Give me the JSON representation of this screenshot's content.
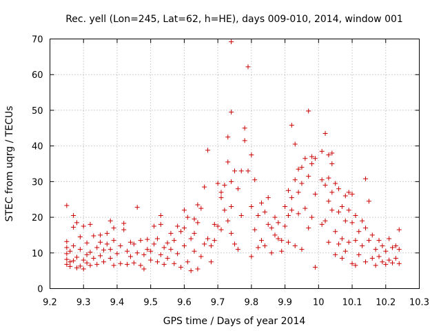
{
  "chart_data": {
    "type": "scatter",
    "title": "Rec. yell (Lon=245, Lat=62, h=HE), days 009-010, 2014, window 001",
    "xlabel": "GPS time / Days of year 2014",
    "ylabel": "STEC from uqrg / TECUs",
    "xlim": [
      9.2,
      10.3
    ],
    "ylim": [
      0,
      70
    ],
    "x_ticks": [
      "9.2",
      "9.3",
      "9.4",
      "9.5",
      "9.6",
      "9.7",
      "9.8",
      "9.9",
      "10",
      "10.1",
      "10.2",
      "10.3"
    ],
    "y_ticks": [
      "0",
      "10",
      "20",
      "30",
      "40",
      "50",
      "60",
      "70"
    ],
    "grid": true,
    "marker": "+",
    "color": "#cc0000",
    "series": [
      {
        "name": "STEC",
        "points": [
          [
            9.25,
            23.3
          ],
          [
            9.25,
            13.2
          ],
          [
            9.25,
            11.5
          ],
          [
            9.25,
            9.8
          ],
          [
            9.25,
            8.2
          ],
          [
            9.25,
            6.8
          ],
          [
            9.26,
            6.2
          ],
          [
            9.26,
            7.5
          ],
          [
            9.26,
            10.5
          ],
          [
            9.27,
            20.5
          ],
          [
            9.27,
            17.2
          ],
          [
            9.27,
            12.0
          ],
          [
            9.27,
            7.8
          ],
          [
            9.28,
            5.8
          ],
          [
            9.28,
            8.8
          ],
          [
            9.28,
            18.5
          ],
          [
            9.29,
            11.0
          ],
          [
            9.29,
            6.3
          ],
          [
            9.29,
            14.5
          ],
          [
            9.3,
            17.5
          ],
          [
            9.3,
            8.0
          ],
          [
            9.3,
            5.5
          ],
          [
            9.31,
            7.2
          ],
          [
            9.31,
            9.5
          ],
          [
            9.31,
            12.8
          ],
          [
            9.32,
            18.0
          ],
          [
            9.32,
            10.2
          ],
          [
            9.32,
            6.5
          ],
          [
            9.33,
            14.8
          ],
          [
            9.33,
            8.5
          ],
          [
            9.34,
            11.5
          ],
          [
            9.34,
            6.8
          ],
          [
            9.35,
            13.0
          ],
          [
            9.35,
            9.2
          ],
          [
            9.35,
            15.0
          ],
          [
            9.36,
            7.5
          ],
          [
            9.36,
            10.8
          ],
          [
            9.37,
            15.5
          ],
          [
            9.37,
            12.5
          ],
          [
            9.38,
            8.5
          ],
          [
            9.38,
            11.0
          ],
          [
            9.38,
            19.0
          ],
          [
            9.39,
            17.0
          ],
          [
            9.39,
            13.5
          ],
          [
            9.39,
            6.5
          ],
          [
            9.4,
            9.8
          ],
          [
            9.41,
            12.0
          ],
          [
            9.41,
            7.0
          ],
          [
            9.42,
            18.3
          ],
          [
            9.42,
            16.5
          ],
          [
            9.43,
            10.5
          ],
          [
            9.43,
            6.8
          ],
          [
            9.44,
            13.0
          ],
          [
            9.44,
            9.0
          ],
          [
            9.45,
            12.5
          ],
          [
            9.45,
            7.2
          ],
          [
            9.46,
            22.8
          ],
          [
            9.46,
            10.0
          ],
          [
            9.47,
            13.5
          ],
          [
            9.47,
            6.5
          ],
          [
            9.48,
            9.5
          ],
          [
            9.48,
            5.5
          ],
          [
            9.49,
            13.8
          ],
          [
            9.49,
            11.0
          ],
          [
            9.5,
            8.0
          ],
          [
            9.5,
            10.5
          ],
          [
            9.51,
            17.5
          ],
          [
            9.51,
            12.5
          ],
          [
            9.52,
            14.0
          ],
          [
            9.52,
            7.5
          ],
          [
            9.53,
            20.5
          ],
          [
            9.53,
            18.0
          ],
          [
            9.53,
            9.5
          ],
          [
            9.54,
            11.5
          ],
          [
            9.54,
            6.8
          ],
          [
            9.55,
            12.8
          ],
          [
            9.55,
            8.5
          ],
          [
            9.56,
            15.5
          ],
          [
            9.56,
            11.0
          ],
          [
            9.57,
            13.5
          ],
          [
            9.57,
            7.0
          ],
          [
            9.58,
            17.5
          ],
          [
            9.58,
            9.8
          ],
          [
            9.59,
            16.0
          ],
          [
            9.59,
            6.0
          ],
          [
            9.6,
            22.0
          ],
          [
            9.6,
            17.0
          ],
          [
            9.6,
            12.0
          ],
          [
            9.61,
            20.0
          ],
          [
            9.61,
            7.5
          ],
          [
            9.62,
            14.0
          ],
          [
            9.62,
            5.0
          ],
          [
            9.63,
            19.5
          ],
          [
            9.63,
            15.5
          ],
          [
            9.63,
            10.5
          ],
          [
            9.64,
            23.5
          ],
          [
            9.64,
            18.5
          ],
          [
            9.64,
            5.5
          ],
          [
            9.65,
            22.5
          ],
          [
            9.65,
            9.0
          ],
          [
            9.66,
            28.5
          ],
          [
            9.66,
            12.5
          ],
          [
            9.67,
            38.8
          ],
          [
            9.67,
            14.0
          ],
          [
            9.68,
            12.0
          ],
          [
            9.68,
            7.5
          ],
          [
            9.69,
            18.0
          ],
          [
            9.69,
            13.5
          ],
          [
            9.7,
            29.5
          ],
          [
            9.7,
            17.5
          ],
          [
            9.71,
            27.0
          ],
          [
            9.71,
            25.5
          ],
          [
            9.71,
            16.5
          ],
          [
            9.72,
            29.0
          ],
          [
            9.72,
            22.0
          ],
          [
            9.73,
            42.5
          ],
          [
            9.73,
            35.5
          ],
          [
            9.73,
            19.0
          ],
          [
            9.74,
            69.2
          ],
          [
            9.74,
            49.5
          ],
          [
            9.74,
            30.0
          ],
          [
            9.74,
            23.0
          ],
          [
            9.74,
            15.5
          ],
          [
            9.75,
            33.0
          ],
          [
            9.75,
            12.5
          ],
          [
            9.76,
            28.0
          ],
          [
            9.76,
            11.0
          ],
          [
            9.77,
            33.0
          ],
          [
            9.77,
            20.5
          ],
          [
            9.78,
            45.0
          ],
          [
            9.78,
            41.5
          ],
          [
            9.79,
            62.2
          ],
          [
            9.79,
            33.0
          ],
          [
            9.8,
            37.5
          ],
          [
            9.8,
            23.0
          ],
          [
            9.8,
            9.0
          ],
          [
            9.81,
            30.5
          ],
          [
            9.81,
            16.5
          ],
          [
            9.82,
            20.5
          ],
          [
            9.82,
            11.5
          ],
          [
            9.83,
            24.0
          ],
          [
            9.83,
            13.5
          ],
          [
            9.84,
            21.5
          ],
          [
            9.84,
            12.0
          ],
          [
            9.85,
            25.5
          ],
          [
            9.85,
            18.0
          ],
          [
            9.86,
            17.0
          ],
          [
            9.86,
            10.0
          ],
          [
            9.87,
            20.0
          ],
          [
            9.87,
            15.0
          ],
          [
            9.88,
            18.5
          ],
          [
            9.88,
            14.0
          ],
          [
            9.89,
            13.5
          ],
          [
            9.89,
            10.5
          ],
          [
            9.9,
            23.0
          ],
          [
            9.9,
            17.5
          ],
          [
            9.91,
            27.5
          ],
          [
            9.91,
            20.5
          ],
          [
            9.91,
            13.0
          ],
          [
            9.92,
            45.8
          ],
          [
            9.92,
            25.5
          ],
          [
            9.92,
            22.0
          ],
          [
            9.93,
            40.5
          ],
          [
            9.93,
            30.5
          ],
          [
            9.93,
            12.0
          ],
          [
            9.94,
            33.5
          ],
          [
            9.94,
            27.0
          ],
          [
            9.94,
            21.0
          ],
          [
            9.95,
            34.0
          ],
          [
            9.95,
            29.5
          ],
          [
            9.95,
            11.0
          ],
          [
            9.96,
            36.5
          ],
          [
            9.96,
            22.5
          ],
          [
            9.97,
            49.8
          ],
          [
            9.97,
            31.5
          ],
          [
            9.97,
            17.0
          ],
          [
            9.98,
            37.0
          ],
          [
            9.98,
            35.0
          ],
          [
            9.98,
            20.0
          ],
          [
            9.99,
            36.5
          ],
          [
            9.99,
            26.5
          ],
          [
            9.99,
            6.0
          ],
          [
            10.01,
            38.5
          ],
          [
            10.01,
            30.5
          ],
          [
            10.01,
            18.0
          ],
          [
            10.02,
            43.5
          ],
          [
            10.02,
            29.0
          ],
          [
            10.02,
            19.0
          ],
          [
            10.03,
            37.5
          ],
          [
            10.03,
            31.0
          ],
          [
            10.03,
            24.5
          ],
          [
            10.03,
            13.0
          ],
          [
            10.04,
            38.0
          ],
          [
            10.04,
            35.0
          ],
          [
            10.04,
            27.0
          ],
          [
            10.04,
            22.0
          ],
          [
            10.05,
            29.5
          ],
          [
            10.05,
            16.0
          ],
          [
            10.05,
            9.5
          ],
          [
            10.06,
            28.0
          ],
          [
            10.06,
            21.5
          ],
          [
            10.06,
            12.5
          ],
          [
            10.07,
            23.0
          ],
          [
            10.07,
            14.0
          ],
          [
            10.07,
            8.5
          ],
          [
            10.08,
            26.0
          ],
          [
            10.08,
            19.0
          ],
          [
            10.08,
            10.5
          ],
          [
            10.09,
            27.0
          ],
          [
            10.09,
            22.0
          ],
          [
            10.09,
            13.0
          ],
          [
            10.1,
            26.5
          ],
          [
            10.1,
            18.5
          ],
          [
            10.1,
            7.0
          ],
          [
            10.11,
            20.5
          ],
          [
            10.11,
            13.5
          ],
          [
            10.11,
            6.5
          ],
          [
            10.12,
            16.0
          ],
          [
            10.12,
            9.5
          ],
          [
            10.13,
            19.0
          ],
          [
            10.13,
            12.0
          ],
          [
            10.14,
            30.8
          ],
          [
            10.14,
            17.0
          ],
          [
            10.14,
            7.5
          ],
          [
            10.15,
            24.5
          ],
          [
            10.15,
            13.5
          ],
          [
            10.16,
            15.0
          ],
          [
            10.16,
            8.5
          ],
          [
            10.17,
            11.0
          ],
          [
            10.17,
            6.5
          ],
          [
            10.18,
            13.5
          ],
          [
            10.18,
            9.0
          ],
          [
            10.19,
            12.0
          ],
          [
            10.19,
            7.5
          ],
          [
            10.2,
            10.5
          ],
          [
            10.2,
            6.8
          ],
          [
            10.21,
            14.0
          ],
          [
            10.21,
            8.0
          ],
          [
            10.22,
            11.5
          ],
          [
            10.22,
            7.2
          ],
          [
            10.23,
            12.0
          ],
          [
            10.23,
            8.5
          ],
          [
            10.24,
            16.5
          ],
          [
            10.24,
            11.0
          ],
          [
            10.24,
            7.0
          ]
        ]
      }
    ]
  }
}
